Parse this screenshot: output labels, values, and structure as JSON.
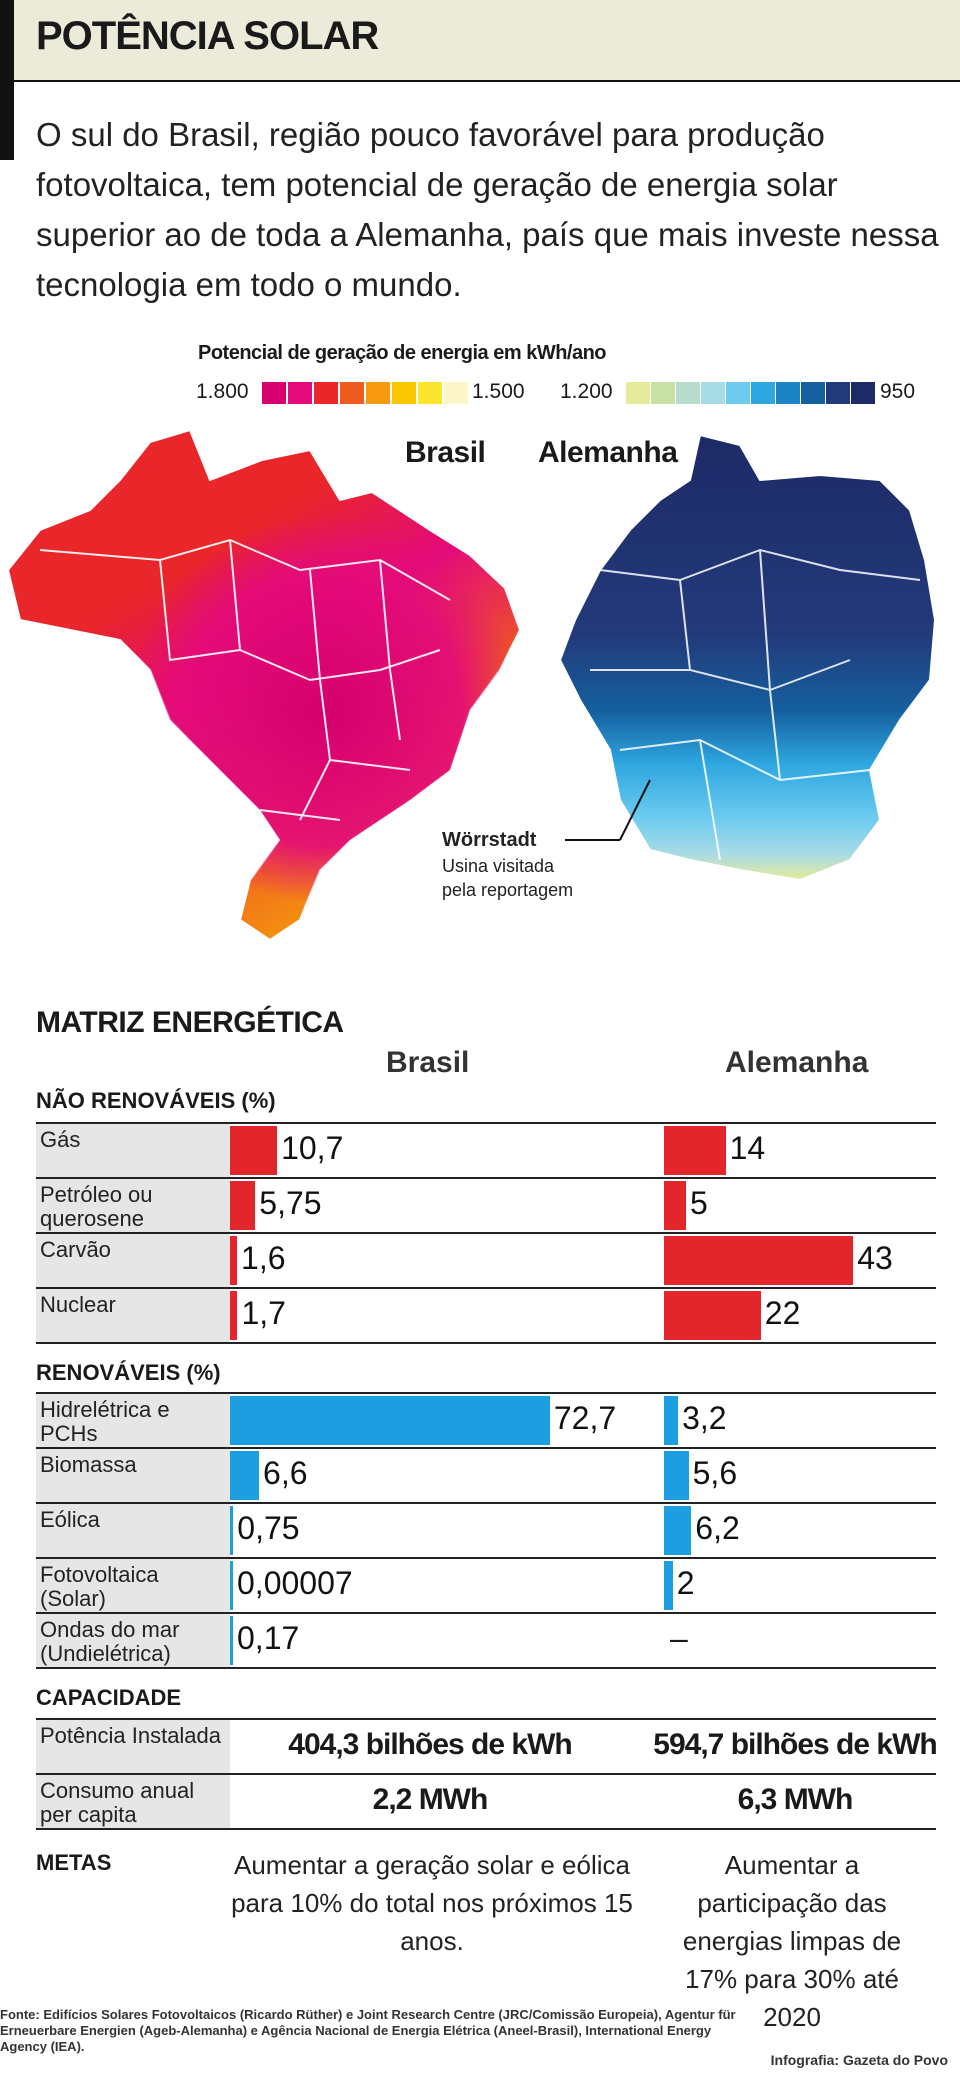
{
  "header": {
    "title": "POTÊNCIA SOLAR",
    "lede": "O sul do Brasil, região pouco favorável para produção fotovoltaica, tem potencial de geração de energia solar superior ao de toda a Alemanha, país que mais investe nessa tecnologia em todo o mundo."
  },
  "legend": {
    "title": "Potencial de geração de energia em kWh/ano",
    "label_max": "1.800",
    "label_mid1": "1.500",
    "label_mid2": "1.200",
    "label_min": "950",
    "warm_colors": [
      "#d6006e",
      "#e30a7a",
      "#e9262a",
      "#ef5a1e",
      "#f59a0e",
      "#f9c600",
      "#fde52b",
      "#fdf6c8"
    ],
    "cool_colors": [
      "#e6ea9b",
      "#c8e0a4",
      "#b7dccc",
      "#a7dbe6",
      "#6ccbef",
      "#2ea7e0",
      "#1c84c4",
      "#15609f",
      "#233a7a",
      "#1d2a66"
    ]
  },
  "maps": {
    "brasil_label": "Brasil",
    "alemanha_label": "Alemanha",
    "city": "Wörrstadt",
    "city_note_1": "Usina visitada",
    "city_note_2": "pela reportagem"
  },
  "matrix": {
    "title": "MATRIZ ENERGÉTICA",
    "col_brasil": "Brasil",
    "col_alemanha": "Alemanha",
    "nonrenew_title": "NÃO RENOVÁVEIS (%)",
    "renew_title": "RENOVÁVEIS (%)",
    "nonrenew_rows": [
      {
        "label": "Gás",
        "brasil": "10,7",
        "alemanha": "14"
      },
      {
        "label": "Petróleo ou querosene",
        "brasil": "5,75",
        "alemanha": "5"
      },
      {
        "label": "Carvão",
        "brasil": "1,6",
        "alemanha": "43"
      },
      {
        "label": "Nuclear",
        "brasil": "1,7",
        "alemanha": "22"
      }
    ],
    "renew_rows": [
      {
        "label": "Hidrelétrica e PCHs",
        "brasil": "72,7",
        "alemanha": "3,2"
      },
      {
        "label": "Biomassa",
        "brasil": "6,6",
        "alemanha": "5,6"
      },
      {
        "label": "Eólica",
        "brasil": "0,75",
        "alemanha": "6,2"
      },
      {
        "label": "Fotovoltaica (Solar)",
        "brasil": "0,00007",
        "alemanha": "2"
      },
      {
        "label": "Ondas do mar (Undielétrica)",
        "brasil": "0,17",
        "alemanha": "–"
      }
    ]
  },
  "chart_data": {
    "type": "bar",
    "title": "MATRIZ ENERGÉTICA",
    "categories": [
      "Gás",
      "Petróleo ou querosene",
      "Carvão",
      "Nuclear",
      "Hidrelétrica e PCHs",
      "Biomassa",
      "Eólica",
      "Fotovoltaica (Solar)",
      "Ondas do mar (Undielétrica)"
    ],
    "series": [
      {
        "name": "Brasil",
        "values": [
          10.7,
          5.75,
          1.6,
          1.7,
          72.7,
          6.6,
          0.75,
          7e-05,
          0.17
        ]
      },
      {
        "name": "Alemanha",
        "values": [
          14,
          5,
          43,
          22,
          3.2,
          5.6,
          6.2,
          2,
          null
        ]
      }
    ],
    "groups": [
      "NÃO RENOVÁVEIS (%)",
      "NÃO RENOVÁVEIS (%)",
      "NÃO RENOVÁVEIS (%)",
      "NÃO RENOVÁVEIS (%)",
      "RENOVÁVEIS (%)",
      "RENOVÁVEIS (%)",
      "RENOVÁVEIS (%)",
      "RENOVÁVEIS (%)",
      "RENOVÁVEIS (%)"
    ],
    "colors": {
      "nao_renovaveis": "#e3262b",
      "renovaveis": "#1d9ee0"
    }
  },
  "capacity": {
    "title": "CAPACIDADE",
    "rows": [
      {
        "label": "Potência Instalada",
        "brasil": "404,3 bilhões de kWh",
        "alemanha": "594,7 bilhões de kWh"
      },
      {
        "label": "Consumo anual per capita",
        "brasil": "2,2 MWh",
        "alemanha": "6,3 MWh"
      }
    ]
  },
  "metas": {
    "title": "METAS",
    "brasil": "Aumentar a geração solar e eólica para 10% do total nos próximos 15 anos.",
    "alemanha": "Aumentar a participação das energias limpas de 17% para 30% até 2020"
  },
  "footer": {
    "source": "Fonte: Edifícios Solares Fotovoltaicos (Ricardo Rüther) e Joint Research Centre (JRC/Comissão Europeia), Agentur für Erneuerbare Energien (Ageb-Alemanha) e Agência Nacional de Energia Elétrica (Aneel-Brasil), International Energy Agency (IEA).",
    "credit": "Infografia: Gazeta do Povo"
  }
}
